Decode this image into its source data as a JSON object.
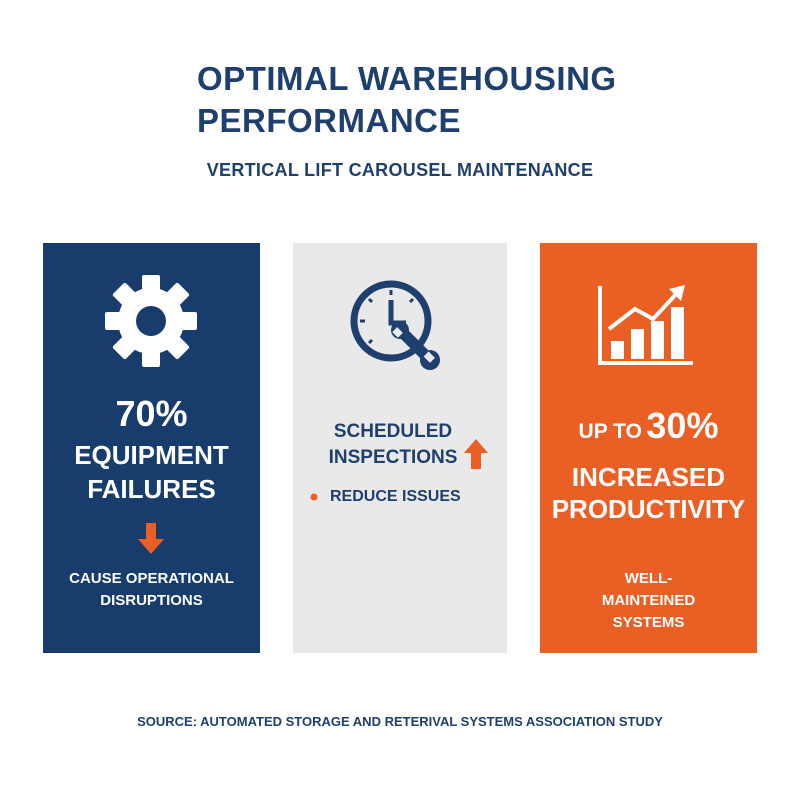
{
  "header": {
    "title": "OPTIMAL WAREHOUSING PERFORMANCE",
    "subtitle": "VERTICAL LIFT CAROUSEL MAINTENANCE"
  },
  "panels": [
    {
      "stat": "70%",
      "label": "EQUIPMENT FAILURES",
      "note": "CAUSE OPERATIONAL DISRUPTIONS"
    },
    {
      "label": "SCHEDULED INSPECTIONS",
      "bullet": "REDUCE ISSUES"
    },
    {
      "prefix": "UP TO",
      "stat": "30%",
      "label": "INCREASED PRODUCTIVITY",
      "note": "WELL-MAINTEINED SYSTEMS"
    }
  ],
  "footer": {
    "source": "SOURCE: AUTOMATED STORAGE AND RETERIVAL SYSTEMS ASSOCIATION STUDY"
  }
}
